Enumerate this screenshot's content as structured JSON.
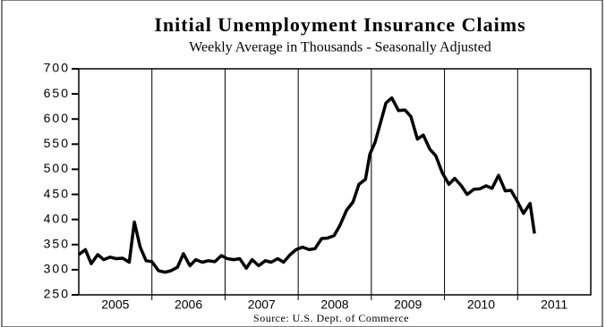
{
  "chart_data": {
    "type": "line",
    "title": "Initial Unemployment Insurance Claims",
    "subtitle": "Weekly Average in Thousands - Seasonally Adjusted",
    "source": "Source: U.S. Dept. of Commerce",
    "x": [
      2005.0,
      2005.09,
      2005.17,
      2005.26,
      2005.34,
      2005.43,
      2005.51,
      2005.6,
      2005.69,
      2005.76,
      2005.84,
      2005.92,
      2006.0,
      2006.09,
      2006.18,
      2006.26,
      2006.35,
      2006.43,
      2006.52,
      2006.6,
      2006.69,
      2006.77,
      2006.86,
      2006.95,
      2007.03,
      2007.12,
      2007.2,
      2007.29,
      2007.37,
      2007.46,
      2007.55,
      2007.63,
      2007.72,
      2007.8,
      2007.89,
      2007.97,
      2008.06,
      2008.15,
      2008.23,
      2008.32,
      2008.4,
      2008.49,
      2008.57,
      2008.66,
      2008.75,
      2008.83,
      2008.92,
      2008.98,
      2009.05,
      2009.12,
      2009.2,
      2009.28,
      2009.37,
      2009.46,
      2009.54,
      2009.63,
      2009.71,
      2009.8,
      2009.88,
      2009.97,
      2010.06,
      2010.14,
      2010.23,
      2010.31,
      2010.4,
      2010.48,
      2010.57,
      2010.65,
      2010.74,
      2010.83,
      2010.91,
      2011.0,
      2011.08,
      2011.17,
      2011.23
    ],
    "series": [
      {
        "color": "#000000",
        "values": [
          330,
          340,
          312,
          330,
          320,
          325,
          322,
          323,
          315,
          395,
          345,
          318,
          316,
          298,
          295,
          298,
          305,
          332,
          308,
          320,
          315,
          318,
          316,
          328,
          322,
          320,
          322,
          303,
          320,
          308,
          318,
          315,
          322,
          315,
          330,
          340,
          345,
          340,
          342,
          362,
          363,
          368,
          388,
          418,
          435,
          470,
          480,
          530,
          553,
          590,
          632,
          642,
          617,
          618,
          605,
          560,
          568,
          540,
          527,
          493,
          470,
          482,
          467,
          450,
          460,
          461,
          467,
          462,
          488,
          457,
          458,
          435,
          412,
          432,
          372
        ]
      }
    ],
    "xlim": [
      2005,
      2012
    ],
    "ylim": [
      250,
      700
    ],
    "yticks": [
      250,
      300,
      350,
      400,
      450,
      500,
      550,
      600,
      650,
      700
    ],
    "xticks": [
      {
        "value": 2005.5,
        "label": "2005"
      },
      {
        "value": 2006.5,
        "label": "2006"
      },
      {
        "value": 2007.5,
        "label": "2007"
      },
      {
        "value": 2008.5,
        "label": "2008"
      },
      {
        "value": 2009.5,
        "label": "2009"
      },
      {
        "value": 2010.5,
        "label": "2010"
      },
      {
        "value": 2011.5,
        "label": "2011"
      }
    ]
  }
}
